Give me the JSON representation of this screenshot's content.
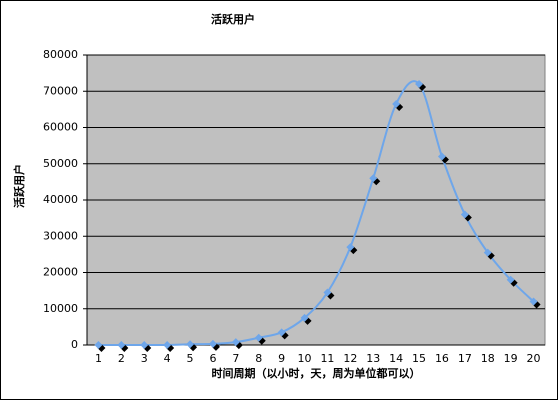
{
  "chart_data": {
    "type": "line",
    "title": "活跃用户",
    "y_label": "活跃用户",
    "x_label": "时间周期（以小时，天，周为单位都可以）",
    "categories": [
      "1",
      "2",
      "3",
      "4",
      "5",
      "6",
      "7",
      "8",
      "9",
      "10",
      "11",
      "12",
      "13",
      "14",
      "15",
      "16",
      "17",
      "18",
      "19",
      "20"
    ],
    "series": [
      {
        "name": "活跃用户",
        "color": "#6ea6ea",
        "values": [
          0,
          0,
          0,
          0,
          200,
          300,
          800,
          2000,
          3500,
          7500,
          14500,
          27000,
          46000,
          66500,
          72000,
          52000,
          36000,
          25500,
          18000,
          12000
        ]
      }
    ],
    "ylim": [
      0,
      80000
    ],
    "yticks": [
      0,
      10000,
      20000,
      30000,
      40000,
      50000,
      60000,
      70000,
      80000
    ],
    "grid": true,
    "plot_background": "#c0c0c0"
  }
}
